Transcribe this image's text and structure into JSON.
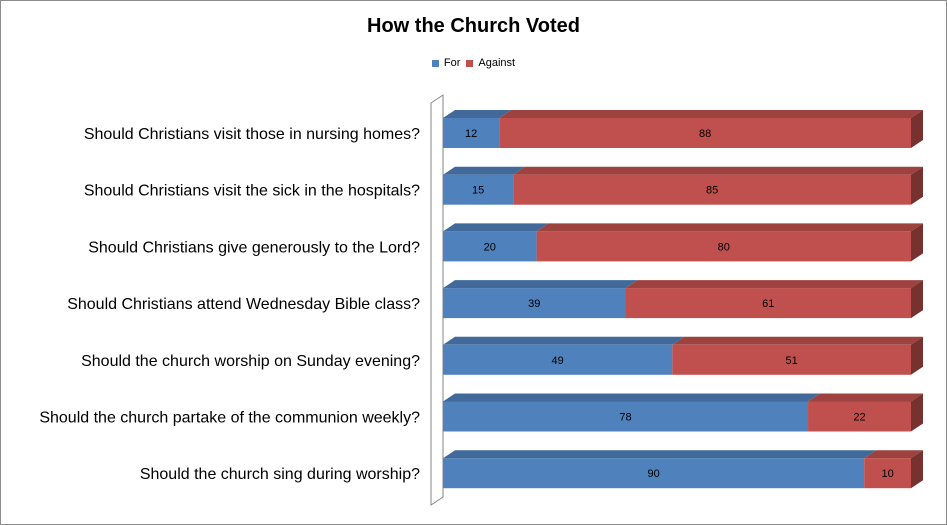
{
  "chart_data": {
    "type": "bar",
    "orientation": "horizontal",
    "stacked": true,
    "title": "How the Church Voted",
    "categories": [
      "Should Christians visit those in nursing homes?",
      "Should Christians visit the sick in the hospitals?",
      "Should Christians give generously to the Lord?",
      "Should Christians attend Wednesday Bible class?",
      "Should the church worship on Sunday evening?",
      "Should the church partake of the communion weekly?",
      "Should the church sing during worship?"
    ],
    "series": [
      {
        "name": "For",
        "color": "#4f81bd",
        "values": [
          12,
          15,
          20,
          39,
          49,
          78,
          90
        ]
      },
      {
        "name": "Against",
        "color": "#c0504d",
        "values": [
          88,
          85,
          80,
          61,
          51,
          22,
          10
        ]
      }
    ],
    "xlim": [
      0,
      100
    ],
    "grid": false,
    "legend_position": "top",
    "data_labels": true,
    "style": "3d"
  }
}
